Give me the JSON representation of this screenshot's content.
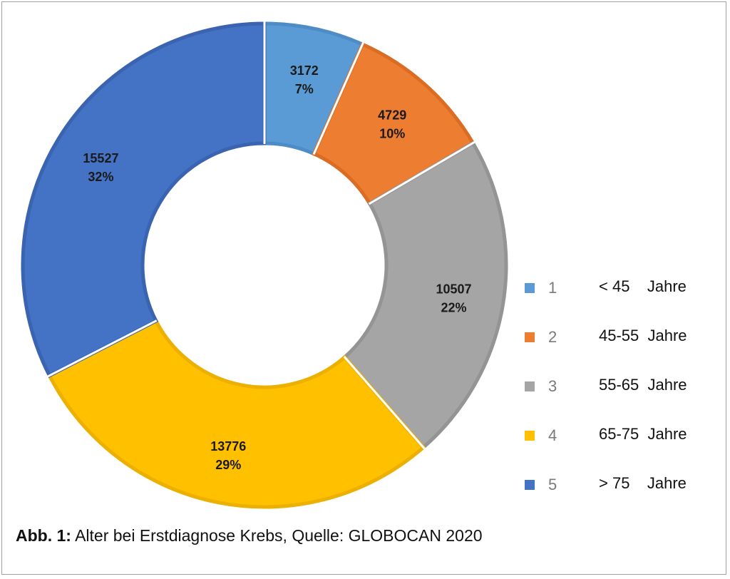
{
  "chart_data": {
    "type": "pie",
    "donut": true,
    "categories": [
      "1",
      "2",
      "3",
      "4",
      "5"
    ],
    "values": [
      3172,
      4729,
      10507,
      13776,
      15527
    ],
    "percent_labels": [
      "7%",
      "10%",
      "22%",
      "29%",
      "32%"
    ],
    "value_labels": [
      "3172",
      "4729",
      "10507",
      "13776",
      "15527"
    ],
    "colors": [
      "#5B9BD5",
      "#ED7D31",
      "#A5A5A5",
      "#FFC000",
      "#4472C4"
    ],
    "border_colors": [
      "#4E8CC7",
      "#DA6C24",
      "#949494",
      "#EBB000",
      "#3A63B0"
    ],
    "legend": {
      "placement": "right",
      "items": [
        {
          "index": "1",
          "label": "< 45    Jahre"
        },
        {
          "index": "2",
          "label": "45-55  Jahre"
        },
        {
          "index": "3",
          "label": "55-65  Jahre"
        },
        {
          "index": "4",
          "label": "65-75  Jahre"
        },
        {
          "index": "5",
          "label": "> 75    Jahre"
        }
      ]
    }
  },
  "caption": {
    "label": "Abb. 1:",
    "text": " Alter bei Erstdiagnose Krebs, Quelle: GLOBOCAN 2020"
  }
}
